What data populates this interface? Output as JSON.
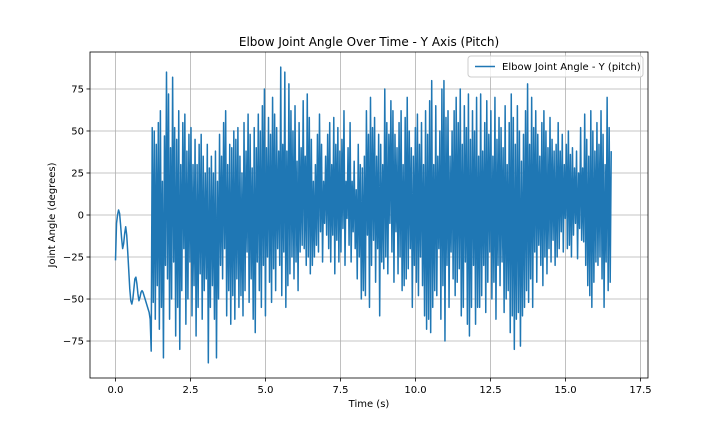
{
  "chart_data": {
    "type": "line",
    "title": "Elbow Joint Angle Over Time - Y Axis (Pitch)",
    "xlabel": "Time (s)",
    "ylabel": "Joint Angle (degrees)",
    "xlim": [
      -0.85,
      17.75
    ],
    "ylim": [
      -97,
      97
    ],
    "xticks": [
      0.0,
      2.5,
      5.0,
      7.5,
      10.0,
      12.5,
      15.0,
      17.5
    ],
    "xtick_labels": [
      "0.0",
      "2.5",
      "5.0",
      "7.5",
      "10.0",
      "12.5",
      "15.0",
      "17.5"
    ],
    "yticks": [
      -75,
      -50,
      -25,
      0,
      25,
      50,
      75
    ],
    "ytick_labels": [
      "−75",
      "−50",
      "−25",
      "0",
      "25",
      "50",
      "75"
    ],
    "grid": true,
    "legend_position": "upper-right",
    "color": "#1f77b4",
    "series": [
      {
        "name": "Elbow Joint Angle - Y (pitch)",
        "x_start": 0.0,
        "dt": 0.034,
        "values": [
          -27,
          -5,
          0,
          3,
          1,
          -6,
          -14,
          -20,
          -17,
          -11,
          -7,
          -12,
          -22,
          -33,
          -44,
          -51,
          -53,
          -50,
          -44,
          -38,
          -37,
          -41,
          -47,
          -51,
          -49,
          -46,
          -45,
          -46,
          -48,
          -50,
          -52,
          -54,
          -56,
          -58,
          -62,
          -81,
          52,
          -52,
          50,
          -62,
          42,
          -42,
          55,
          -68,
          62,
          -55,
          20,
          -85,
          47,
          -30,
          85,
          -38,
          72,
          -62,
          40,
          -50,
          82,
          -28,
          52,
          -72,
          45,
          -55,
          62,
          -80,
          30,
          -45,
          55,
          -20,
          60,
          -65,
          38,
          -50,
          48,
          -28,
          52,
          -60,
          30,
          -42,
          45,
          -72,
          30,
          -55,
          42,
          -35,
          48,
          -62,
          35,
          -45,
          25,
          -38,
          42,
          -88,
          28,
          -55,
          35,
          -42,
          25,
          -62,
          38,
          -85,
          20,
          -50,
          48,
          -30,
          35,
          -38,
          55,
          -20,
          62,
          -60,
          30,
          -45,
          42,
          -65,
          40,
          -48,
          50,
          -62,
          45,
          -38,
          52,
          -55,
          35,
          -48,
          25,
          -60,
          55,
          -45,
          38,
          -22,
          60,
          -52,
          48,
          -38,
          28,
          -62,
          52,
          -70,
          40,
          -28,
          60,
          -45,
          50,
          -55,
          65,
          -30,
          75,
          -60,
          40,
          -25,
          58,
          -40,
          48,
          -52,
          70,
          -32,
          60,
          -45,
          52,
          -20,
          38,
          -30,
          88,
          -48,
          42,
          -22,
          85,
          -55,
          38,
          -42,
          78,
          -35,
          62,
          -25,
          50,
          -38,
          65,
          -28,
          32,
          -45,
          55,
          -22,
          40,
          -18,
          68,
          -20,
          35,
          -30,
          72,
          -25,
          58,
          -35,
          45,
          -30,
          20,
          -25,
          30,
          -18,
          48,
          -22,
          60,
          -10,
          42,
          -28,
          20,
          -5,
          35,
          -12,
          48,
          -20,
          55,
          -28,
          30,
          -12,
          58,
          -35,
          42,
          -15,
          52,
          -28,
          38,
          -22,
          45,
          -8,
          62,
          -30,
          20,
          -2,
          40,
          -18,
          55,
          -28,
          20,
          -10,
          32,
          -20,
          15,
          -38,
          42,
          -25,
          30,
          -50,
          28,
          -45,
          35,
          -48,
          62,
          -12,
          48,
          -55,
          70,
          -30,
          52,
          -15,
          58,
          -40,
          35,
          -20,
          48,
          -60,
          42,
          -28,
          30,
          -32,
          75,
          -25,
          55,
          -35,
          48,
          -5,
          68,
          -22,
          62,
          -40,
          48,
          -10,
          40,
          -35,
          55,
          -25,
          62,
          -45,
          30,
          -42,
          58,
          -38,
          70,
          -32,
          50,
          -20,
          40,
          -55,
          35,
          -30,
          52,
          -40,
          60,
          -48,
          42,
          -25,
          55,
          -42,
          30,
          -60,
          62,
          -68,
          48,
          -62,
          68,
          -70,
          80,
          -55,
          30,
          -45,
          65,
          -48,
          35,
          -20,
          50,
          -62,
          75,
          -42,
          80,
          -75,
          58,
          -30,
          62,
          -55,
          35,
          -22,
          50,
          -38,
          62,
          -48,
          70,
          -40,
          55,
          -32,
          75,
          -60,
          42,
          -55,
          65,
          -28,
          52,
          -65,
          72,
          -72,
          45,
          -55,
          62,
          -30,
          50,
          -65,
          70,
          -55,
          35,
          -55,
          72,
          -48,
          38,
          -30,
          55,
          -58,
          68,
          -40,
          48,
          -22,
          62,
          -50,
          35,
          -40,
          70,
          -62,
          45,
          -30,
          58,
          -42,
          52,
          -28,
          40,
          -58,
          65,
          -50,
          30,
          -45,
          55,
          -70,
          72,
          -60,
          58,
          -80,
          42,
          -62,
          65,
          -58,
          50,
          -78,
          32,
          -60,
          48,
          -55,
          62,
          -45,
          78,
          -52,
          42,
          -38,
          70,
          -55,
          52,
          -22,
          62,
          -40,
          48,
          -18,
          35,
          -30,
          55,
          -42,
          62,
          -25,
          50,
          -35,
          40,
          -20,
          58,
          -28,
          45,
          -15,
          38,
          -30,
          42,
          -25,
          55,
          -20,
          38,
          -10,
          48,
          -22,
          30,
          -2,
          42,
          -20,
          50,
          -18,
          36,
          -25,
          40,
          -12,
          28,
          -5,
          38,
          -26,
          25,
          -8,
          52,
          -15,
          28,
          -16,
          60,
          -30,
          45,
          -42,
          35,
          -48,
          62,
          -55,
          50,
          -40,
          38,
          -28,
          55,
          -30,
          42,
          -25,
          62,
          -38,
          48,
          -55,
          30,
          -28,
          70,
          -45,
          52,
          -40,
          38
        ]
      }
    ]
  }
}
